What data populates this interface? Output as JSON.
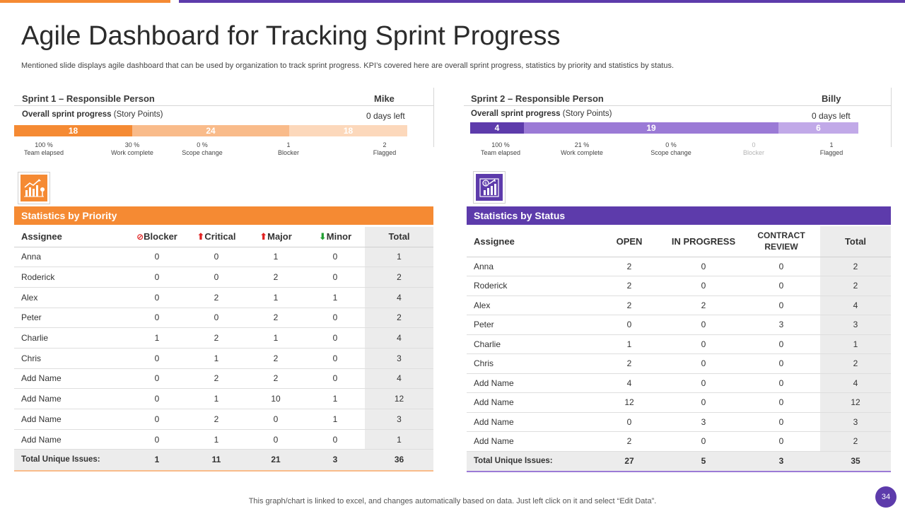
{
  "header": {
    "title": "Agile Dashboard for Tracking Sprint Progress",
    "subtitle": "Mentioned slide displays agile dashboard that can be used by organization to track sprint progress. KPI’s covered here are overall sprint progress, statistics by priority and statistics by status."
  },
  "colors": {
    "orange": "#f58a33",
    "orange_mid": "#f9bb8a",
    "orange_light": "#fcd8bb",
    "purple": "#5d3bab",
    "purple_mid": "#9b7ad6",
    "purple_light": "#c1a9e8"
  },
  "sprint1": {
    "title": "Sprint 1 – Responsible Person",
    "person": "Mike",
    "progress_label": "Overall sprint progress",
    "progress_unit": "(Story Points)",
    "days_left": "0 days left",
    "segments": [
      "18",
      "24",
      "18"
    ],
    "kpis": [
      {
        "value": "100 %",
        "label": "Team elapsed"
      },
      {
        "value": "30 %",
        "label": "Work complete"
      },
      {
        "value": "0 %",
        "label": "Scope change"
      },
      {
        "value": "1",
        "label": "Blocker"
      },
      {
        "value": "2",
        "label": "Flagged"
      }
    ]
  },
  "sprint2": {
    "title": "Sprint 2 – Responsible Person",
    "person": "Billy",
    "progress_label": "Overall sprint progress",
    "progress_unit": "(Story Points)",
    "days_left": "0 days left",
    "segments": [
      "4",
      "19",
      "6"
    ],
    "kpis": [
      {
        "value": "100 %",
        "label": "Team elapsed"
      },
      {
        "value": "21 %",
        "label": "Work complete"
      },
      {
        "value": "0 %",
        "label": "Scope change"
      },
      {
        "value": "0",
        "label": "Blocker"
      },
      {
        "value": "1",
        "label": "Flagged"
      }
    ]
  },
  "priority": {
    "title": "Statistics by Priority",
    "headers": [
      "Assignee",
      "Blocker",
      "Critical",
      "Major",
      "Minor",
      "Total"
    ],
    "rows": [
      [
        "Anna",
        "0",
        "0",
        "1",
        "0",
        "1"
      ],
      [
        "Roderick",
        "0",
        "0",
        "2",
        "0",
        "2"
      ],
      [
        "Alex",
        "0",
        "2",
        "1",
        "1",
        "4"
      ],
      [
        "Peter",
        "0",
        "0",
        "2",
        "0",
        "2"
      ],
      [
        "Charlie",
        "1",
        "2",
        "1",
        "0",
        "4"
      ],
      [
        "Chris",
        "0",
        "1",
        "2",
        "0",
        "3"
      ],
      [
        "Add Name",
        "0",
        "2",
        "2",
        "0",
        "4"
      ],
      [
        "Add Name",
        "0",
        "1",
        "10",
        "1",
        "12"
      ],
      [
        "Add Name",
        "0",
        "2",
        "0",
        "1",
        "3"
      ],
      [
        "Add Name",
        "0",
        "1",
        "0",
        "0",
        "1"
      ]
    ],
    "footer": [
      "Total Unique Issues:",
      "1",
      "11",
      "21",
      "3",
      "36"
    ]
  },
  "status": {
    "title": "Statistics by Status",
    "headers": [
      "Assignee",
      "OPEN",
      "IN PROGRESS",
      "CONTRACT REVIEW",
      "Total"
    ],
    "rows": [
      [
        "Anna",
        "2",
        "0",
        "0",
        "2"
      ],
      [
        "Roderick",
        "2",
        "0",
        "0",
        "2"
      ],
      [
        "Alex",
        "2",
        "2",
        "0",
        "4"
      ],
      [
        "Peter",
        "0",
        "0",
        "3",
        "3"
      ],
      [
        "Charlie",
        "1",
        "0",
        "0",
        "1"
      ],
      [
        "Chris",
        "2",
        "0",
        "0",
        "2"
      ],
      [
        "Add Name",
        "4",
        "0",
        "0",
        "4"
      ],
      [
        "Add Name",
        "12",
        "0",
        "0",
        "12"
      ],
      [
        "Add Name",
        "0",
        "3",
        "0",
        "3"
      ],
      [
        "Add Name",
        "2",
        "0",
        "0",
        "2"
      ]
    ],
    "footer": [
      "Total Unique Issues:",
      "27",
      "5",
      "3",
      "35"
    ]
  },
  "footer": {
    "note": "This graph/chart is linked to excel, and changes automatically based on data. Just left click on it and select “Edit Data”.",
    "page": "34"
  }
}
